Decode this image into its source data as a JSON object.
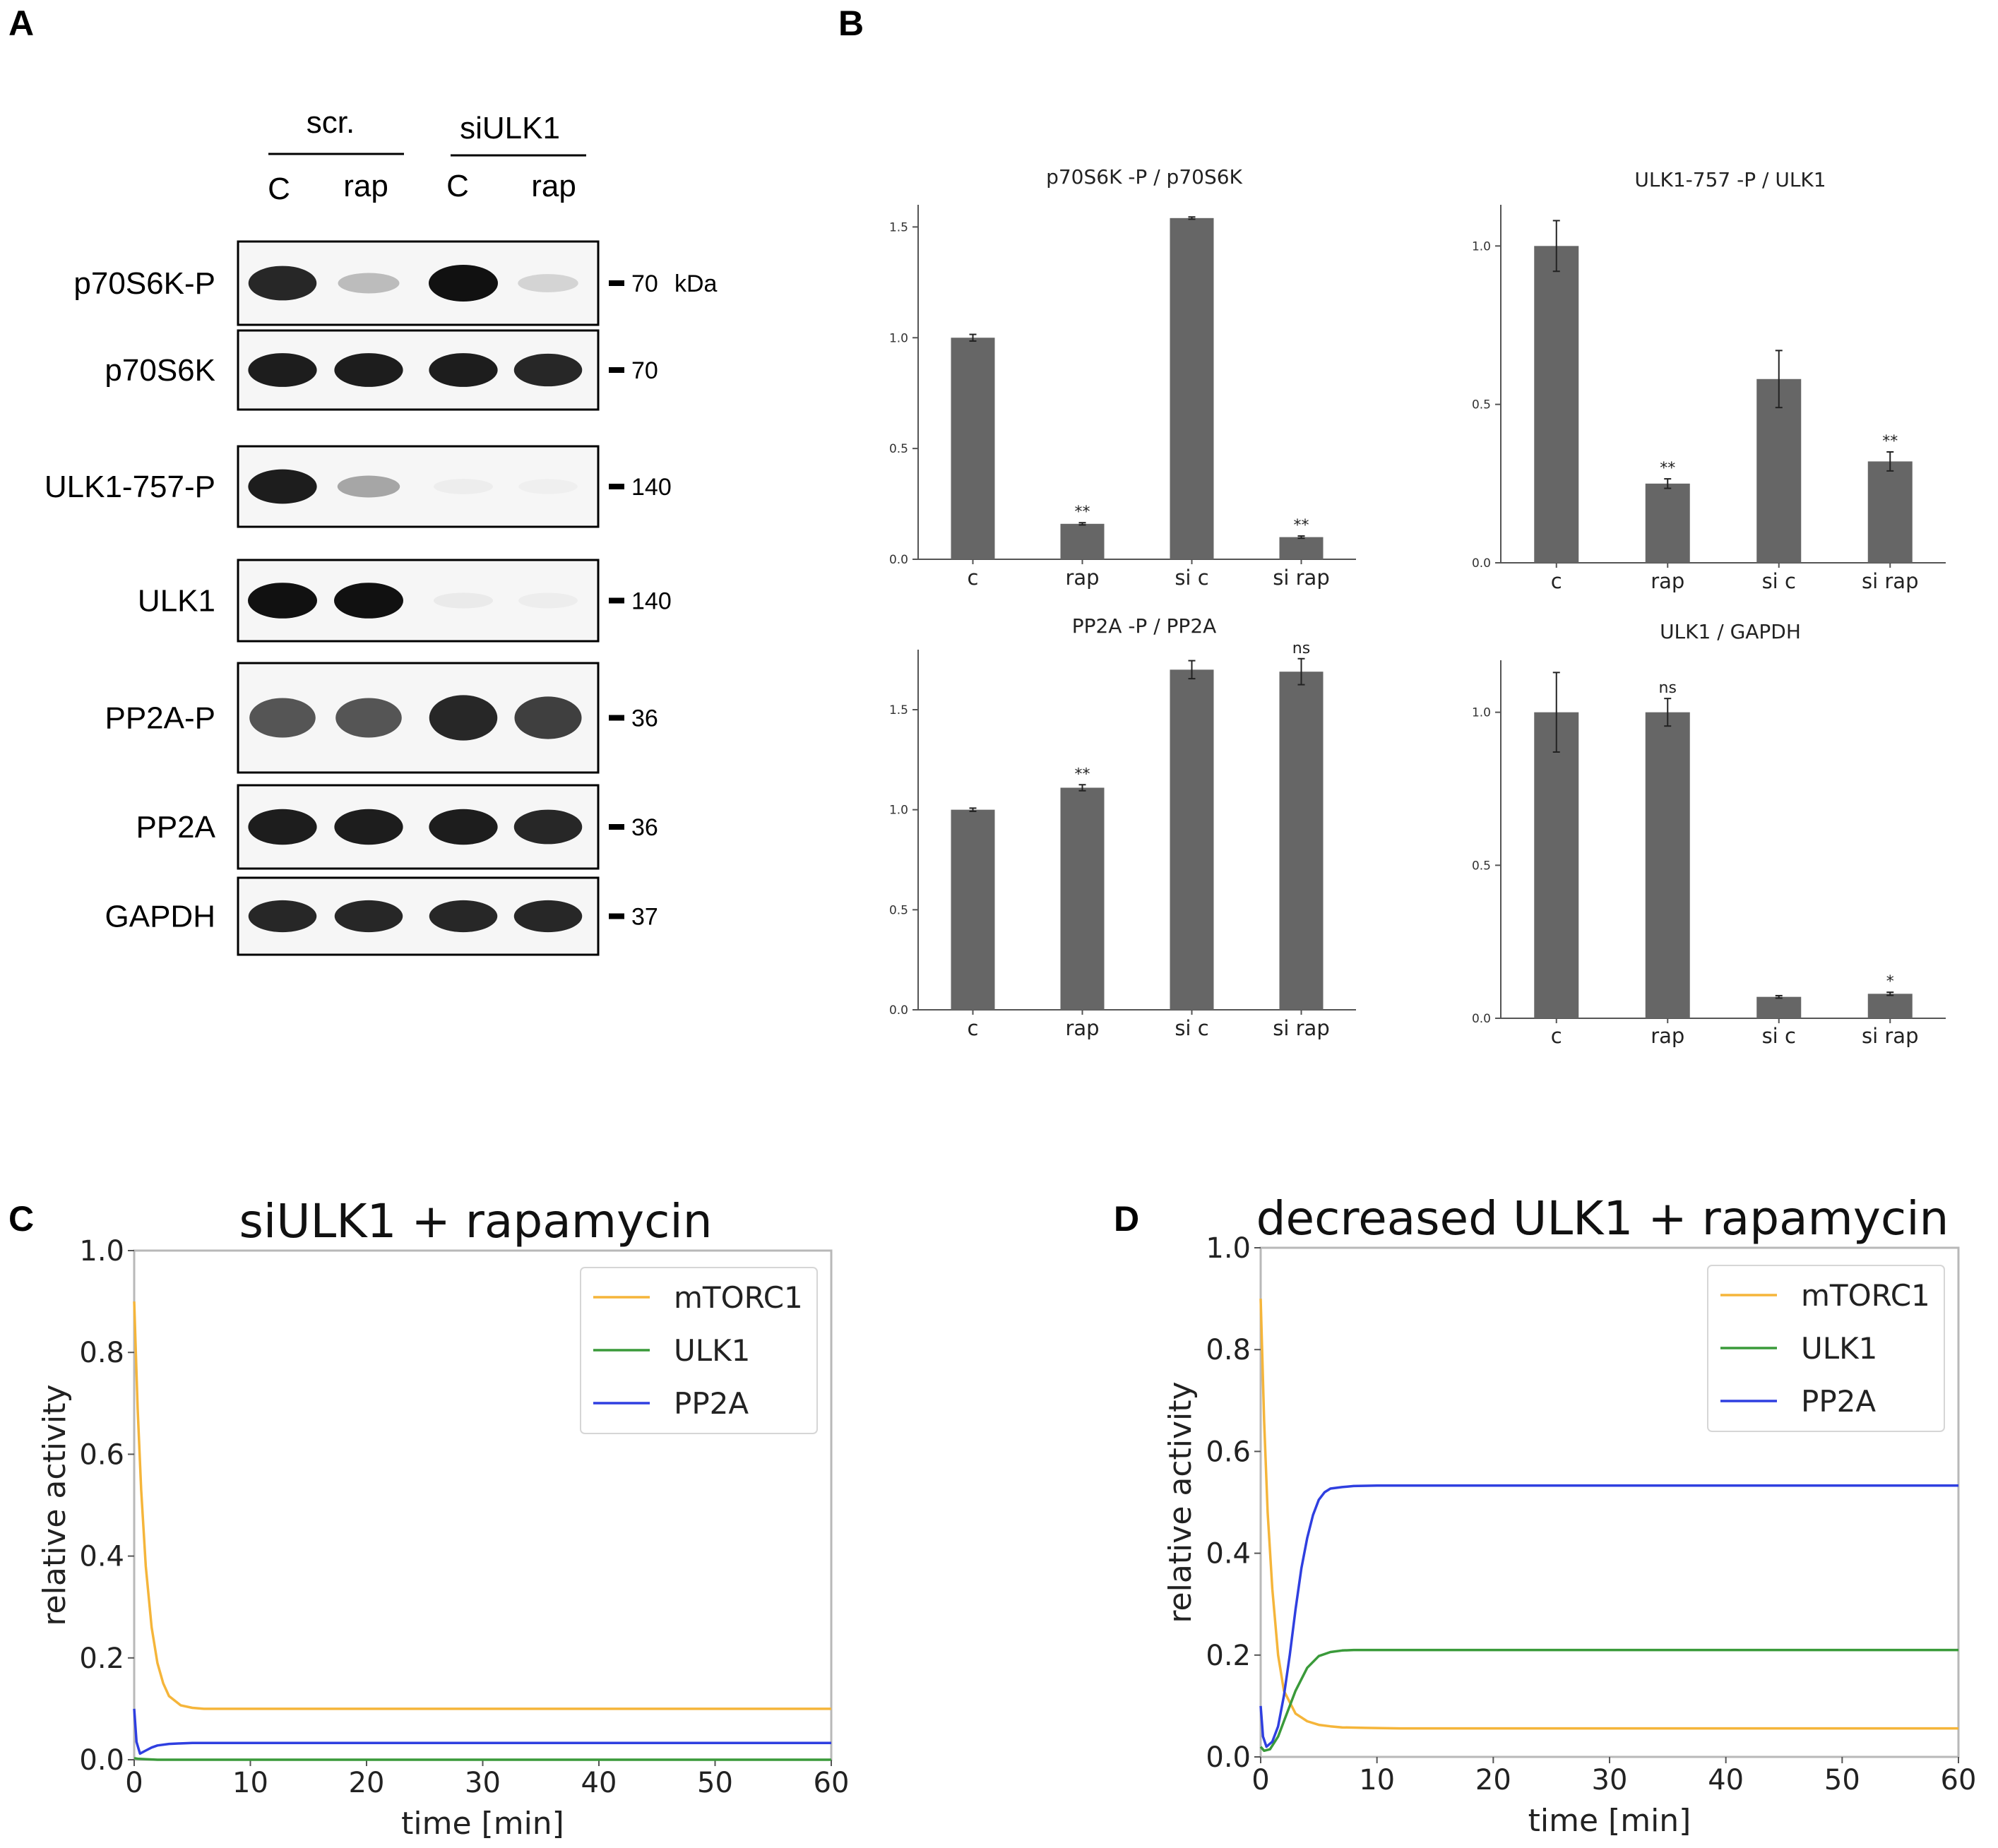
{
  "panels": {
    "a": "A",
    "b": "B",
    "c": "C",
    "d": "D"
  },
  "western_blot": {
    "groups": [
      {
        "label": "scr.",
        "lanes": [
          "C",
          "rap"
        ]
      },
      {
        "label": "siULK1",
        "lanes": [
          "C",
          "rap"
        ]
      }
    ],
    "rows": [
      {
        "label": "p70S6K-P",
        "marker": "70",
        "unit": "kDa",
        "intensities": [
          0.9,
          0.25,
          1.0,
          0.15
        ]
      },
      {
        "label": "p70S6K",
        "marker": "70",
        "intensities": [
          0.95,
          0.95,
          0.95,
          0.9
        ]
      },
      {
        "label": "ULK1-757-P",
        "marker": "140",
        "intensities": [
          0.95,
          0.35,
          0.04,
          0.02
        ]
      },
      {
        "label": "ULK1",
        "marker": "140",
        "intensities": [
          1.0,
          1.0,
          0.05,
          0.04
        ]
      },
      {
        "label": "PP2A-P",
        "marker": "36",
        "intensities": [
          0.7,
          0.7,
          0.9,
          0.8
        ]
      },
      {
        "label": "PP2A",
        "marker": "36",
        "intensities": [
          0.95,
          0.95,
          0.95,
          0.9
        ]
      },
      {
        "label": "GAPDH",
        "marker": "37",
        "intensities": [
          0.9,
          0.9,
          0.9,
          0.9
        ]
      }
    ]
  },
  "chart_data": [
    {
      "type": "bar",
      "panel": "B",
      "title": "p70S6K -P / p70S6K",
      "categories": [
        "c",
        "rap",
        "si c",
        "si rap"
      ],
      "values": [
        1.0,
        0.16,
        1.54,
        0.1
      ],
      "errors": [
        0.015,
        0.005,
        0.005,
        0.005
      ],
      "significance": [
        "",
        "**",
        "",
        "**"
      ],
      "yticks": [
        "0.0",
        "0.5",
        "1.0",
        "1.5"
      ],
      "ylim": [
        0,
        1.6
      ]
    },
    {
      "type": "bar",
      "panel": "B",
      "title": "ULK1-757 -P / ULK1",
      "categories": [
        "c",
        "rap",
        "si c",
        "si rap"
      ],
      "values": [
        1.0,
        0.25,
        0.58,
        0.32
      ],
      "errors": [
        0.08,
        0.015,
        0.09,
        0.03
      ],
      "significance": [
        "",
        "**",
        "",
        "**"
      ],
      "yticks": [
        "0.0",
        "0.5",
        "1.0"
      ],
      "ylim": [
        0,
        1.13
      ]
    },
    {
      "type": "bar",
      "panel": "B",
      "title": "PP2A -P / PP2A",
      "categories": [
        "c",
        "rap",
        "si c",
        "si rap"
      ],
      "values": [
        1.0,
        1.11,
        1.7,
        1.69
      ],
      "errors": [
        0.008,
        0.015,
        0.045,
        0.065
      ],
      "significance": [
        "",
        "**",
        "",
        "ns"
      ],
      "yticks": [
        "0.0",
        "0.5",
        "1.0",
        "1.5"
      ],
      "ylim": [
        0,
        1.8
      ]
    },
    {
      "type": "bar",
      "panel": "B",
      "title": "ULK1 / GAPDH",
      "categories": [
        "c",
        "rap",
        "si c",
        "si rap"
      ],
      "values": [
        1.0,
        1.0,
        0.07,
        0.08
      ],
      "errors": [
        0.13,
        0.045,
        0.004,
        0.005
      ],
      "significance": [
        "",
        "ns",
        "",
        "*"
      ],
      "yticks": [
        "0.0",
        "0.5",
        "1.0"
      ],
      "ylim": [
        0,
        1.17
      ]
    },
    {
      "type": "line",
      "panel": "C",
      "title": "siULK1 + rapamycin",
      "xlabel": "time [min]",
      "ylabel": "relative activity",
      "xlim": [
        0,
        60
      ],
      "ylim": [
        0,
        1.0
      ],
      "xticks": [
        "0",
        "10",
        "20",
        "30",
        "40",
        "50",
        "60"
      ],
      "yticks": [
        "0.0",
        "0.2",
        "0.4",
        "0.6",
        "0.8",
        "1.0"
      ],
      "legend": [
        "mTORC1",
        "ULK1",
        "PP2A"
      ],
      "series": [
        {
          "name": "mTORC1",
          "color": "#f5b53a",
          "x": [
            0,
            0.3,
            0.6,
            1.0,
            1.5,
            2.0,
            2.5,
            3.0,
            4.0,
            5.0,
            6.0,
            8.0,
            60
          ],
          "y": [
            0.9,
            0.69,
            0.53,
            0.38,
            0.26,
            0.19,
            0.15,
            0.125,
            0.107,
            0.102,
            0.1,
            0.1,
            0.1
          ]
        },
        {
          "name": "ULK1",
          "color": "#3a9a3a",
          "x": [
            0,
            0.3,
            1.0,
            2.0,
            60
          ],
          "y": [
            0.003,
            0.002,
            0.001,
            0.0,
            0.0
          ]
        },
        {
          "name": "PP2A",
          "color": "#2f3fe0",
          "x": [
            0,
            0.2,
            0.5,
            1.0,
            1.5,
            2.0,
            3.0,
            4.0,
            5.0,
            6.0,
            60
          ],
          "y": [
            0.1,
            0.035,
            0.012,
            0.018,
            0.024,
            0.028,
            0.031,
            0.032,
            0.033,
            0.033,
            0.033
          ]
        }
      ]
    },
    {
      "type": "line",
      "panel": "D",
      "title": "decreased ULK1 + rapamycin",
      "xlabel": "time [min]",
      "ylabel": "relative activity",
      "xlim": [
        0,
        60
      ],
      "ylim": [
        0,
        1.0
      ],
      "xticks": [
        "0",
        "10",
        "20",
        "30",
        "40",
        "50",
        "60"
      ],
      "yticks": [
        "0.0",
        "0.2",
        "0.4",
        "0.6",
        "0.8",
        "1.0"
      ],
      "legend": [
        "mTORC1",
        "ULK1",
        "PP2A"
      ],
      "series": [
        {
          "name": "mTORC1",
          "color": "#f5b53a",
          "x": [
            0,
            0.3,
            0.6,
            1.0,
            1.5,
            2.0,
            3.0,
            4.0,
            5.0,
            6.0,
            7.0,
            9.0,
            12.0,
            60
          ],
          "y": [
            0.9,
            0.66,
            0.48,
            0.33,
            0.2,
            0.13,
            0.085,
            0.07,
            0.063,
            0.06,
            0.058,
            0.057,
            0.056,
            0.056
          ]
        },
        {
          "name": "ULK1",
          "color": "#3a9a3a",
          "x": [
            0,
            0.3,
            0.8,
            1.5,
            2.0,
            3.0,
            4.0,
            5.0,
            6.0,
            7.0,
            8.0,
            10.0,
            60
          ],
          "y": [
            0.02,
            0.012,
            0.015,
            0.04,
            0.07,
            0.13,
            0.175,
            0.198,
            0.206,
            0.209,
            0.21,
            0.21,
            0.21
          ]
        },
        {
          "name": "PP2A",
          "color": "#2f3fe0",
          "x": [
            0,
            0.2,
            0.5,
            1.0,
            1.5,
            2.0,
            2.5,
            3.0,
            3.5,
            4.0,
            4.5,
            5.0,
            5.5,
            6.0,
            7.0,
            8.0,
            10.0,
            60
          ],
          "y": [
            0.1,
            0.04,
            0.02,
            0.03,
            0.06,
            0.12,
            0.2,
            0.29,
            0.37,
            0.43,
            0.475,
            0.505,
            0.52,
            0.527,
            0.53,
            0.532,
            0.533,
            0.533
          ]
        }
      ]
    }
  ]
}
